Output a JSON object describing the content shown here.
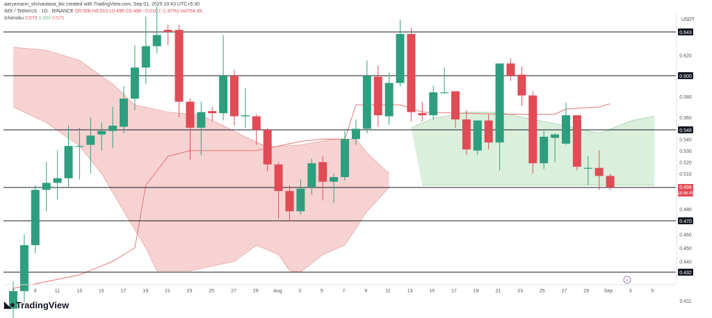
{
  "header": {
    "attribution": "aaryamann_shrivastava_bic created with TradingView.com, Sep 01, 2025 10:43 UTC+5:30",
    "symbol": "IMX / TetherUS · 1D · BINANCE",
    "ohlc": "O0.508 H0.510 L0.496 C0.498 −0.010 (−1.97%) Vol704.3K",
    "indicator_name": "Ichimoku",
    "indicator_values": [
      "0.573",
      "0.564",
      "0.570"
    ]
  },
  "currency": "USDT",
  "brand": "TradingView",
  "colors": {
    "up": "#26a69a",
    "up_body": "#2e9e7e",
    "down": "#ef5350",
    "down_body": "#e04b55",
    "kumo_bear": "#f5c7c7",
    "kumo_bull": "#cfe9d2",
    "baseline": "#e57373",
    "level_line": "#131722"
  },
  "chart_data": {
    "type": "candlestick",
    "title": "IMX / TetherUS · 1D · BINANCE",
    "y_ticks": [
      "0.620",
      "0.580",
      "0.560",
      "0.540",
      "0.530",
      "0.520",
      "0.510",
      "0.480",
      "0.460",
      "0.450",
      "0.440",
      "0.411"
    ],
    "x_ticks": [
      "7",
      "9",
      "11",
      "13",
      "15",
      "17",
      "19",
      "21",
      "23",
      "25",
      "27",
      "29",
      "Aug",
      "3",
      "5",
      "7",
      "9",
      "11",
      "13",
      "15",
      "17",
      "19",
      "21",
      "23",
      "25",
      "27",
      "29",
      "Sep",
      "3",
      "5"
    ],
    "levels": [
      {
        "value": "0.643"
      },
      {
        "value": "0.600"
      },
      {
        "value": "0.548"
      },
      {
        "value": "0.498"
      },
      {
        "value": "0.470"
      },
      {
        "value": "0.432"
      }
    ],
    "last_price": "0.498",
    "countdown": "18:46:45",
    "candles": [
      {
        "o": 0.405,
        "h": 0.425,
        "l": 0.395,
        "c": 0.418
      },
      {
        "o": 0.418,
        "h": 0.46,
        "l": 0.41,
        "c": 0.452
      },
      {
        "o": 0.452,
        "h": 0.5,
        "l": 0.446,
        "c": 0.496
      },
      {
        "o": 0.496,
        "h": 0.52,
        "l": 0.478,
        "c": 0.502
      },
      {
        "o": 0.502,
        "h": 0.53,
        "l": 0.488,
        "c": 0.506
      },
      {
        "o": 0.506,
        "h": 0.552,
        "l": 0.498,
        "c": 0.534
      },
      {
        "o": 0.534,
        "h": 0.55,
        "l": 0.505,
        "c": 0.534
      },
      {
        "o": 0.535,
        "h": 0.56,
        "l": 0.51,
        "c": 0.543
      },
      {
        "o": 0.544,
        "h": 0.555,
        "l": 0.53,
        "c": 0.547
      },
      {
        "o": 0.547,
        "h": 0.57,
        "l": 0.532,
        "c": 0.552
      },
      {
        "o": 0.551,
        "h": 0.59,
        "l": 0.545,
        "c": 0.578
      },
      {
        "o": 0.578,
        "h": 0.63,
        "l": 0.567,
        "c": 0.608
      },
      {
        "o": 0.608,
        "h": 0.658,
        "l": 0.592,
        "c": 0.629
      },
      {
        "o": 0.629,
        "h": 0.668,
        "l": 0.622,
        "c": 0.64
      },
      {
        "o": 0.645,
        "h": 0.65,
        "l": 0.63,
        "c": 0.643
      },
      {
        "o": 0.645,
        "h": 0.65,
        "l": 0.56,
        "c": 0.575
      },
      {
        "o": 0.575,
        "h": 0.578,
        "l": 0.522,
        "c": 0.55
      },
      {
        "o": 0.55,
        "h": 0.575,
        "l": 0.526,
        "c": 0.565
      },
      {
        "o": 0.566,
        "h": 0.57,
        "l": 0.556,
        "c": 0.564
      },
      {
        "o": 0.564,
        "h": 0.64,
        "l": 0.557,
        "c": 0.6
      },
      {
        "o": 0.6,
        "h": 0.606,
        "l": 0.552,
        "c": 0.561
      },
      {
        "o": 0.561,
        "h": 0.588,
        "l": 0.55,
        "c": 0.562
      },
      {
        "o": 0.561,
        "h": 0.563,
        "l": 0.535,
        "c": 0.548
      },
      {
        "o": 0.548,
        "h": 0.55,
        "l": 0.512,
        "c": 0.518
      },
      {
        "o": 0.518,
        "h": 0.52,
        "l": 0.472,
        "c": 0.495
      },
      {
        "o": 0.495,
        "h": 0.5,
        "l": 0.47,
        "c": 0.478
      },
      {
        "o": 0.478,
        "h": 0.505,
        "l": 0.475,
        "c": 0.497
      },
      {
        "o": 0.498,
        "h": 0.523,
        "l": 0.492,
        "c": 0.519
      },
      {
        "o": 0.52,
        "h": 0.525,
        "l": 0.487,
        "c": 0.503
      },
      {
        "o": 0.503,
        "h": 0.51,
        "l": 0.485,
        "c": 0.507
      },
      {
        "o": 0.507,
        "h": 0.547,
        "l": 0.504,
        "c": 0.54
      },
      {
        "o": 0.54,
        "h": 0.558,
        "l": 0.535,
        "c": 0.549
      },
      {
        "o": 0.549,
        "h": 0.615,
        "l": 0.545,
        "c": 0.6
      },
      {
        "o": 0.599,
        "h": 0.61,
        "l": 0.551,
        "c": 0.562
      },
      {
        "o": 0.561,
        "h": 0.603,
        "l": 0.553,
        "c": 0.593
      },
      {
        "o": 0.593,
        "h": 0.655,
        "l": 0.59,
        "c": 0.641
      },
      {
        "o": 0.641,
        "h": 0.647,
        "l": 0.556,
        "c": 0.565
      },
      {
        "o": 0.564,
        "h": 0.575,
        "l": 0.556,
        "c": 0.562
      },
      {
        "o": 0.562,
        "h": 0.59,
        "l": 0.558,
        "c": 0.584
      },
      {
        "o": 0.584,
        "h": 0.608,
        "l": 0.583,
        "c": 0.584
      },
      {
        "o": 0.585,
        "h": 0.585,
        "l": 0.55,
        "c": 0.558
      },
      {
        "o": 0.558,
        "h": 0.567,
        "l": 0.526,
        "c": 0.531
      },
      {
        "o": 0.53,
        "h": 0.557,
        "l": 0.526,
        "c": 0.557
      },
      {
        "o": 0.557,
        "h": 0.563,
        "l": 0.531,
        "c": 0.537
      },
      {
        "o": 0.537,
        "h": 0.612,
        "l": 0.513,
        "c": 0.612
      },
      {
        "o": 0.612,
        "h": 0.617,
        "l": 0.595,
        "c": 0.6
      },
      {
        "o": 0.601,
        "h": 0.609,
        "l": 0.571,
        "c": 0.581
      },
      {
        "o": 0.581,
        "h": 0.585,
        "l": 0.51,
        "c": 0.519
      },
      {
        "o": 0.519,
        "h": 0.547,
        "l": 0.514,
        "c": 0.542
      },
      {
        "o": 0.541,
        "h": 0.545,
        "l": 0.52,
        "c": 0.544
      },
      {
        "o": 0.536,
        "h": 0.574,
        "l": 0.535,
        "c": 0.562
      },
      {
        "o": 0.562,
        "h": 0.562,
        "l": 0.513,
        "c": 0.516
      },
      {
        "o": 0.515,
        "h": 0.525,
        "l": 0.5,
        "c": 0.515
      },
      {
        "o": 0.515,
        "h": 0.53,
        "l": 0.496,
        "c": 0.508
      },
      {
        "o": 0.508,
        "h": 0.51,
        "l": 0.496,
        "c": 0.498
      }
    ],
    "baseline": [
      [
        0,
        0.42
      ],
      [
        6,
        0.43
      ],
      [
        9,
        0.44
      ],
      [
        11,
        0.45
      ],
      [
        12,
        0.5
      ],
      [
        14,
        0.525
      ],
      [
        16,
        0.53
      ],
      [
        22,
        0.53
      ],
      [
        26,
        0.538
      ],
      [
        28,
        0.54
      ],
      [
        30,
        0.54
      ],
      [
        31,
        0.572
      ],
      [
        35,
        0.572
      ],
      [
        37,
        0.565
      ],
      [
        44,
        0.563
      ],
      [
        49,
        0.563
      ],
      [
        50,
        0.568
      ],
      [
        53,
        0.57
      ],
      [
        54,
        0.573
      ]
    ],
    "kumo_upper": [
      [
        0,
        0.628
      ],
      [
        3,
        0.625
      ],
      [
        6,
        0.615
      ],
      [
        9,
        0.592
      ],
      [
        11,
        0.572
      ],
      [
        14,
        0.565
      ],
      [
        17,
        0.562
      ],
      [
        19,
        0.552
      ],
      [
        21,
        0.542
      ],
      [
        23,
        0.533
      ],
      [
        26,
        0.535
      ],
      [
        29,
        0.54
      ],
      [
        31,
        0.54
      ],
      [
        32,
        0.528
      ],
      [
        34,
        0.51
      ],
      [
        36,
        0.55
      ],
      [
        38,
        0.559
      ],
      [
        41,
        0.565
      ],
      [
        44,
        0.565
      ],
      [
        47,
        0.558
      ],
      [
        50,
        0.552
      ],
      [
        53,
        0.545
      ],
      [
        56,
        0.557
      ],
      [
        58,
        0.561
      ]
    ],
    "kumo_lower": [
      [
        0,
        0.57
      ],
      [
        3,
        0.555
      ],
      [
        6,
        0.534
      ],
      [
        8,
        0.51
      ],
      [
        10,
        0.478
      ],
      [
        12,
        0.45
      ],
      [
        13,
        0.433
      ],
      [
        16,
        0.433
      ],
      [
        20,
        0.44
      ],
      [
        22,
        0.452
      ],
      [
        24,
        0.445
      ],
      [
        25,
        0.433
      ],
      [
        26,
        0.432
      ],
      [
        28,
        0.445
      ],
      [
        30,
        0.452
      ],
      [
        32,
        0.478
      ],
      [
        34,
        0.498
      ],
      [
        37,
        0.5
      ],
      [
        45,
        0.5
      ],
      [
        53,
        0.5
      ],
      [
        58,
        0.5
      ]
    ]
  }
}
